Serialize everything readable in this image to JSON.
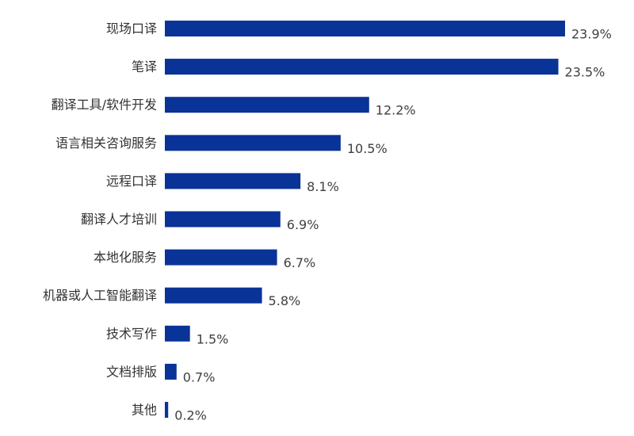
{
  "colors": {
    "bar": "#0a3397",
    "label_text": "#333333",
    "value_text": "#404040"
  },
  "chart_data": {
    "type": "bar",
    "orientation": "horizontal",
    "title": "",
    "xlabel": "",
    "ylabel": "",
    "grid": false,
    "value_suffix": "%",
    "xlim": [
      0,
      23.9
    ],
    "categories": [
      "现场口译",
      "笔译",
      "翻译工具/软件开发",
      "语言相关咨询服务",
      "远程口译",
      "翻译人才培训",
      "本地化服务",
      "机器或人工智能翻译",
      "技术写作",
      "文档排版",
      "其他"
    ],
    "values": [
      23.9,
      23.5,
      12.2,
      10.5,
      8.1,
      6.9,
      6.7,
      5.8,
      1.5,
      0.7,
      0.2
    ],
    "value_labels": [
      "23.9%",
      "23.5%",
      "12.2%",
      "10.5%",
      "8.1%",
      "6.9%",
      "6.7%",
      "5.8%",
      "1.5%",
      "0.7%",
      "0.2%"
    ]
  }
}
